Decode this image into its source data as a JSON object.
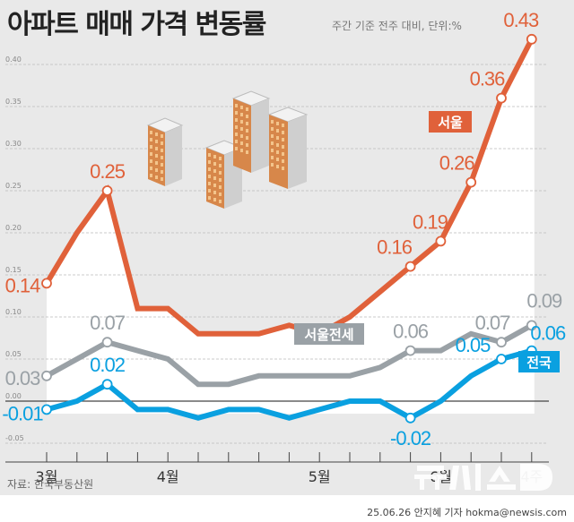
{
  "header": {
    "title": "아파트 매매 가격 변동률",
    "subtitle": "주간 기준 전주 대비, 단위:%"
  },
  "footer": {
    "source": "자료: 한국부동산원",
    "credit": "25.06.26 안지혜 기자 hokma@newsis.com",
    "watermark": "뉴시스"
  },
  "colors": {
    "background": "#e9e9e9",
    "seoul": "#e0613a",
    "jeonse": "#9aa1a6",
    "national": "#0aa0e0"
  },
  "chart_data": {
    "type": "line",
    "title": "아파트 매매 가격 변동률",
    "subtitle": "주간 기준 전주 대비, 단위:%",
    "ylim": [
      -0.05,
      0.43
    ],
    "yticks": [
      "0.40",
      "0.35",
      "0.30",
      "0.25",
      "0.20",
      "0.15",
      "0.10",
      "0.05",
      "0.00",
      "-0.05"
    ],
    "ytick_values": [
      0.4,
      0.35,
      0.3,
      0.25,
      0.2,
      0.15,
      0.1,
      0.05,
      0.0,
      -0.05
    ],
    "grid": true,
    "x_month_labels": [
      {
        "label": "3월",
        "index": 0
      },
      {
        "label": "4월",
        "index": 4
      },
      {
        "label": "5월",
        "index": 9
      },
      {
        "label": "6월",
        "index": 13
      },
      {
        "label": "4주",
        "index": 16
      }
    ],
    "series": [
      {
        "name": "서울",
        "color": "#e0613a",
        "values": [
          0.14,
          0.2,
          0.25,
          0.11,
          0.11,
          0.08,
          0.08,
          0.08,
          0.09,
          0.08,
          0.1,
          0.13,
          0.16,
          0.19,
          0.26,
          0.36,
          0.43
        ],
        "labeled": [
          0,
          2,
          12,
          13,
          14,
          15,
          16
        ],
        "labels": [
          "0.14",
          "0.25",
          "0.16",
          "0.19",
          "0.26",
          "0.36",
          "0.43"
        ]
      },
      {
        "name": "서울전세",
        "color": "#9aa1a6",
        "values": [
          0.03,
          0.05,
          0.07,
          0.06,
          0.05,
          0.02,
          0.02,
          0.03,
          0.03,
          0.03,
          0.03,
          0.04,
          0.06,
          0.06,
          0.08,
          0.07,
          0.09
        ],
        "labeled": [
          0,
          2,
          12,
          15,
          16
        ],
        "labels": [
          "0.03",
          "0.07",
          "0.06",
          "0.07",
          "0.09"
        ]
      },
      {
        "name": "전국",
        "color": "#0aa0e0",
        "values": [
          -0.01,
          0.0,
          0.02,
          -0.01,
          -0.01,
          -0.02,
          -0.01,
          -0.01,
          -0.02,
          -0.01,
          0.0,
          0.0,
          -0.02,
          0.0,
          0.03,
          0.05,
          0.06
        ],
        "labeled": [
          0,
          2,
          12,
          15,
          16
        ],
        "labels": [
          "-0.01",
          "0.02",
          "-0.02",
          "0.05",
          "0.06"
        ]
      }
    ]
  }
}
